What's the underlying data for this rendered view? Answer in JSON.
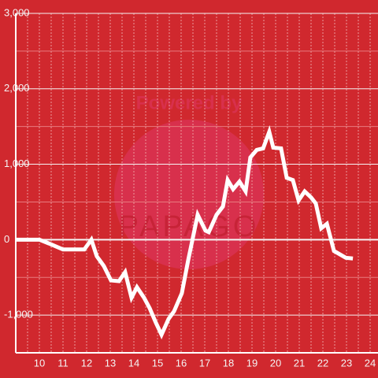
{
  "chart_data": {
    "type": "line",
    "watermark": {
      "line1": "Powered by",
      "line2": "PAPAGO"
    },
    "x": [
      9.0,
      10.0,
      10.4,
      11.0,
      11.9,
      12.2,
      12.43,
      12.73,
      13.03,
      13.37,
      13.63,
      13.9,
      14.13,
      14.43,
      14.67,
      14.93,
      15.17,
      15.47,
      15.7,
      16.03,
      16.3,
      16.7,
      17.03,
      17.17,
      17.5,
      17.77,
      17.97,
      18.2,
      18.47,
      18.73,
      18.93,
      19.2,
      19.47,
      19.73,
      19.9,
      20.23,
      20.47,
      20.73,
      20.97,
      21.23,
      21.5,
      21.7,
      21.93,
      22.17,
      22.47,
      22.97,
      23.27
    ],
    "series": [
      {
        "color": "#ffffff",
        "values": [
          0,
          0,
          -50,
          -130,
          -130,
          0,
          -220,
          -350,
          -540,
          -550,
          -430,
          -770,
          -630,
          -770,
          -910,
          -1100,
          -1260,
          -1050,
          -950,
          -710,
          -270,
          330,
          120,
          100,
          330,
          440,
          790,
          670,
          770,
          640,
          1090,
          1190,
          1210,
          1430,
          1220,
          1210,
          820,
          790,
          520,
          640,
          560,
          480,
          150,
          210,
          -150,
          -240,
          -250
        ]
      }
    ],
    "xlim": [
      9,
      24.333
    ],
    "xticks": [
      10,
      11,
      12,
      13,
      14,
      15,
      16,
      17,
      18,
      19,
      20,
      21,
      22,
      23,
      24
    ],
    "xminor": [
      9.5,
      10.5,
      11.5,
      12.5,
      13.5,
      14.5,
      15.5,
      16.5,
      17.5,
      18.5,
      19.5,
      20.5,
      21.5,
      22.5,
      23.5
    ],
    "ylim": [
      -1500,
      3000
    ],
    "yticks": [
      {
        "value": -1000,
        "label": "-1,000"
      },
      0,
      {
        "value": 1000,
        "label": "1,000"
      },
      {
        "value": 2000,
        "label": "2,000"
      },
      {
        "value": 3000,
        "label": "3,000"
      }
    ],
    "yminor": [
      -1500,
      -500,
      500,
      1500,
      2500
    ],
    "grid": true
  }
}
